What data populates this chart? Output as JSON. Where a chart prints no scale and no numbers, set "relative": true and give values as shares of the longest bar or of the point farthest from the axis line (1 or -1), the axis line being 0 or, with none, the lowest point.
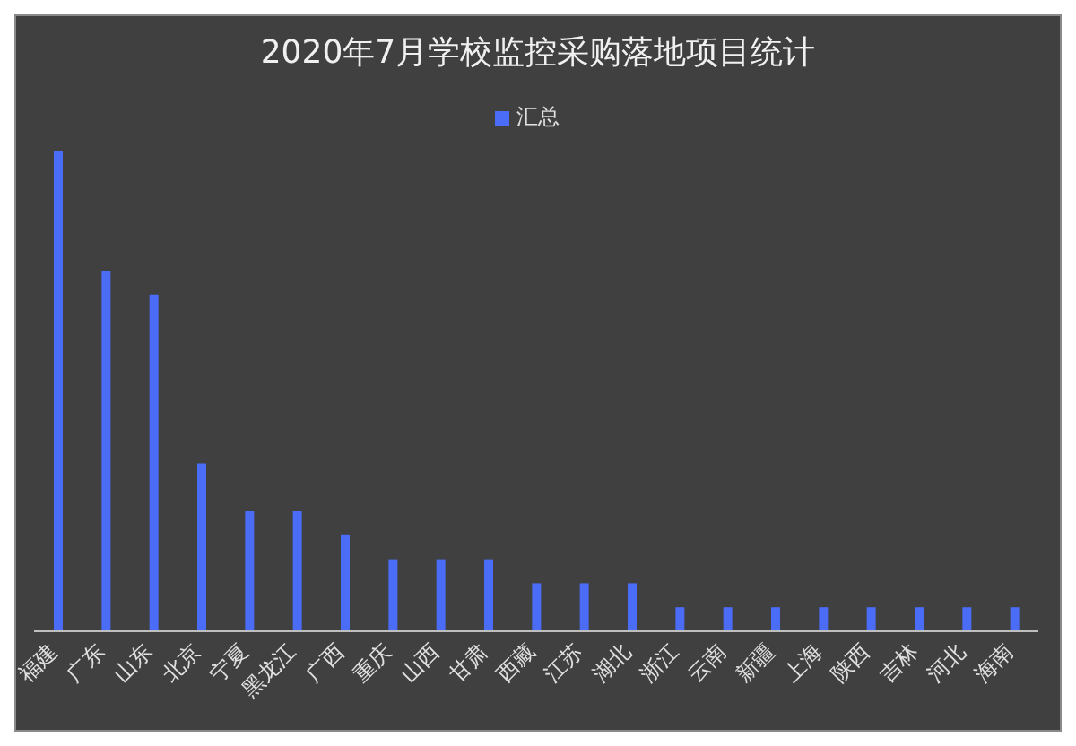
{
  "chart_data": {
    "type": "bar",
    "title": "2020年7月学校监控采购落地项目统计",
    "categories": [
      "福建",
      "广东",
      "山东",
      "北京",
      "宁夏",
      "黑龙江",
      "广西",
      "重庆",
      "山西",
      "甘肃",
      "西藏",
      "江苏",
      "湖北",
      "浙江",
      "云南",
      "新疆",
      "上海",
      "陕西",
      "吉林",
      "河北",
      "海南"
    ],
    "series": [
      {
        "name": "汇总",
        "color": "#4a6cf7",
        "values": [
          1,
          0.75,
          0.7,
          0.35,
          0.25,
          0.25,
          0.2,
          0.15,
          0.15,
          0.15,
          0.1,
          0.1,
          0.1,
          0.05,
          0.05,
          0.05,
          0.05,
          0.05,
          0.05,
          0.05,
          0.05
        ]
      }
    ],
    "relative": true,
    "legend": "top",
    "grid": false
  }
}
